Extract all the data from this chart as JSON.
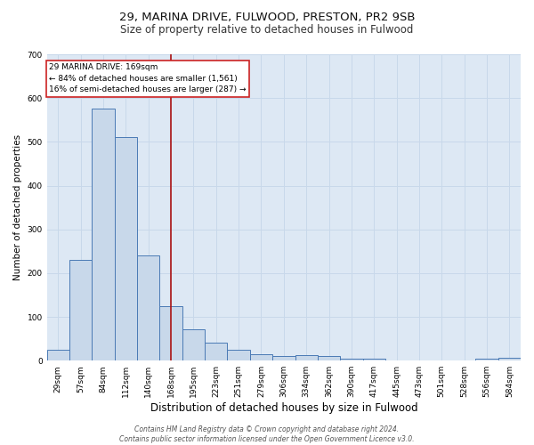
{
  "title1": "29, MARINA DRIVE, FULWOOD, PRESTON, PR2 9SB",
  "title2": "Size of property relative to detached houses in Fulwood",
  "xlabel": "Distribution of detached houses by size in Fulwood",
  "ylabel": "Number of detached properties",
  "bar_labels": [
    "29sqm",
    "57sqm",
    "84sqm",
    "112sqm",
    "140sqm",
    "168sqm",
    "195sqm",
    "223sqm",
    "251sqm",
    "279sqm",
    "306sqm",
    "334sqm",
    "362sqm",
    "390sqm",
    "417sqm",
    "445sqm",
    "473sqm",
    "501sqm",
    "528sqm",
    "556sqm",
    "584sqm"
  ],
  "bar_values": [
    25,
    230,
    575,
    510,
    240,
    125,
    72,
    42,
    25,
    15,
    10,
    12,
    10,
    5,
    5,
    0,
    0,
    0,
    0,
    5,
    7
  ],
  "bar_color": "#c8d8ea",
  "bar_edge_color": "#4a7ab5",
  "bar_edge_width": 0.7,
  "red_line_index": 5,
  "red_line_color": "#aa1111",
  "annotation_text": "29 MARINA DRIVE: 169sqm\n← 84% of detached houses are smaller (1,561)\n16% of semi-detached houses are larger (287) →",
  "annotation_box_color": "#ffffff",
  "annotation_box_edge_color": "#cc2222",
  "ylim": [
    0,
    700
  ],
  "yticks": [
    0,
    100,
    200,
    300,
    400,
    500,
    600,
    700
  ],
  "grid_color": "#c8d8ea",
  "bg_color": "#dde8f4",
  "fig_bg_color": "#ffffff",
  "footnote": "Contains HM Land Registry data © Crown copyright and database right 2024.\nContains public sector information licensed under the Open Government Licence v3.0.",
  "title1_fontsize": 9.5,
  "title2_fontsize": 8.5,
  "xlabel_fontsize": 8.5,
  "ylabel_fontsize": 7.5,
  "tick_fontsize": 6.5,
  "annot_fontsize": 6.5,
  "footnote_fontsize": 5.5
}
